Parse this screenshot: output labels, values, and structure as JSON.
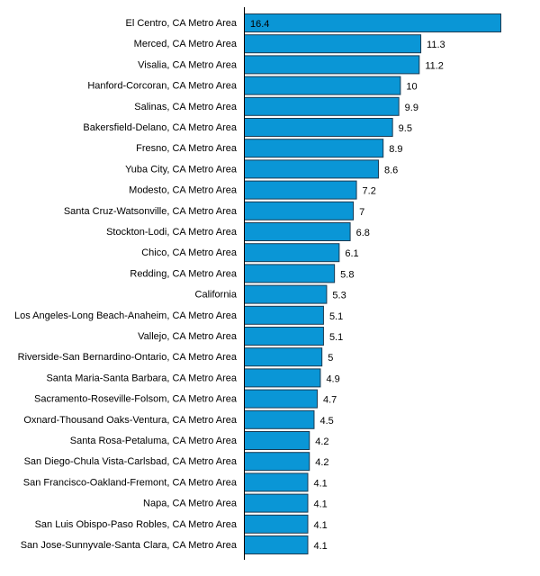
{
  "chart_data": {
    "type": "bar",
    "orientation": "horizontal",
    "categories": [
      "El Centro, CA Metro Area",
      "Merced, CA Metro Area",
      "Visalia, CA Metro Area",
      "Hanford-Corcoran, CA Metro Area",
      "Salinas, CA Metro Area",
      "Bakersfield-Delano, CA Metro Area",
      "Fresno, CA Metro Area",
      "Yuba City, CA Metro Area",
      "Modesto, CA Metro Area",
      "Santa Cruz-Watsonville, CA Metro Area",
      "Stockton-Lodi, CA Metro Area",
      "Chico, CA Metro Area",
      "Redding, CA Metro Area",
      "California",
      "Los Angeles-Long Beach-Anaheim, CA Metro Area",
      "Vallejo, CA Metro Area",
      "Riverside-San Bernardino-Ontario, CA Metro Area",
      "Santa Maria-Santa Barbara, CA Metro Area",
      "Sacramento-Roseville-Folsom, CA Metro Area",
      "Oxnard-Thousand Oaks-Ventura, CA Metro Area",
      "Santa Rosa-Petaluma, CA Metro Area",
      "San Diego-Chula Vista-Carlsbad, CA Metro Area",
      "San Francisco-Oakland-Fremont, CA Metro Area",
      "Napa, CA Metro Area",
      "San Luis Obispo-Paso Robles, CA Metro Area",
      "San Jose-Sunnyvale-Santa Clara, CA Metro Area"
    ],
    "values": [
      16.4,
      11.3,
      11.2,
      10,
      9.9,
      9.5,
      8.9,
      8.6,
      7.2,
      7,
      6.8,
      6.1,
      5.8,
      5.3,
      5.1,
      5.1,
      5,
      4.9,
      4.7,
      4.5,
      4.2,
      4.2,
      4.1,
      4.1,
      4.1,
      4.1
    ],
    "value_labels": [
      "16.4",
      "11.3",
      "11.2",
      "10",
      "9.9",
      "9.5",
      "8.9",
      "8.6",
      "7.2",
      "7",
      "6.8",
      "6.1",
      "5.8",
      "5.3",
      "5.1",
      "5.1",
      "5",
      "4.9",
      "4.7",
      "4.5",
      "4.2",
      "4.2",
      "4.1",
      "4.1",
      "4.1",
      "4.1"
    ],
    "title": "",
    "xlabel": "",
    "ylabel": "",
    "xlim": [
      0,
      16.4
    ],
    "grid": false,
    "legend": "none",
    "colors": {
      "bar_fill": "#0a96d6",
      "bar_stroke": "#1a3a52",
      "axis": "#000000",
      "text": "#000000"
    }
  }
}
